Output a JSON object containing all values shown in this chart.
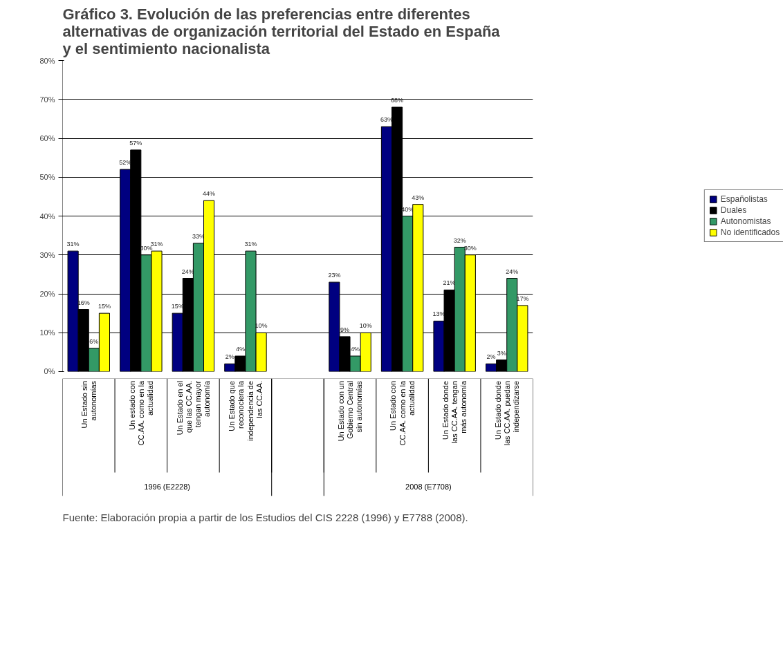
{
  "chart_data": {
    "type": "bar",
    "title": "Gráfico 3. Evolución de las preferencias entre diferentes alternativas de organización territorial del Estado en España y el sentimiento nacionalista",
    "categories": [
      "Un Estado sin autonomías",
      "Un estado con CC.AA. como en la actualidad",
      "Un Estado en el que las CC.AA. tengan mayor autonomía",
      "Un Estado que reconociera la independencia de las CC.AA.",
      null,
      "Un Estado con un Gobierno Central sin autonomías",
      "Un Estado con CC.AA. como en la actualidad",
      "Un Estado donde las CC.AA. tengan más autonomía",
      "Un Estado donde las CC.AA. puedan independizarse"
    ],
    "series": [
      {
        "name": "Españolistas",
        "color": "#000080",
        "values": [
          31,
          52,
          15,
          2,
          null,
          23,
          63,
          13,
          2
        ],
        "value_labels": [
          "31%",
          "52%",
          "15%",
          "2%",
          null,
          "23%",
          "63%",
          "13%",
          "2%"
        ]
      },
      {
        "name": "Duales",
        "color": "#000000",
        "values": [
          16,
          57,
          24,
          4,
          null,
          9,
          68,
          21,
          3
        ],
        "value_labels": [
          "16%",
          "57%",
          "24%",
          "4%",
          null,
          "9%",
          "68%",
          "21%",
          "3%"
        ]
      },
      {
        "name": "Autonomistas",
        "color": "#339966",
        "values": [
          6,
          30,
          33,
          31,
          null,
          4,
          40,
          32,
          24
        ],
        "value_labels": [
          "6%",
          "30%",
          "33%",
          "31%",
          null,
          "4%",
          "40%",
          "32%",
          "24%"
        ]
      },
      {
        "name": "No identificados",
        "color": "#ffff00",
        "values": [
          15,
          31,
          44,
          10,
          null,
          10,
          43,
          30,
          17
        ],
        "value_labels": [
          "15%",
          "31%",
          "44%",
          "10%",
          null,
          "10%",
          "43%",
          "30%",
          "17%"
        ]
      }
    ],
    "ylim": [
      0,
      80
    ],
    "yticks": [
      {
        "value": 0,
        "label": "0%"
      },
      {
        "value": 10,
        "label": "10%"
      },
      {
        "value": 20,
        "label": "20%"
      },
      {
        "value": 30,
        "label": "30%"
      },
      {
        "value": 40,
        "label": "40%"
      },
      {
        "value": 50,
        "label": "50%"
      },
      {
        "value": 60,
        "label": "60%"
      },
      {
        "value": 70,
        "label": "70%"
      },
      {
        "value": 80,
        "label": "80%"
      }
    ],
    "grid": "y",
    "legend": "right",
    "annotations": [
      "1996 (E2228)",
      "2008 (E7708)",
      "Fuente: Elaboración propia a partir de los Estudios del CIS 2228 (1996) y E7788 (2008)."
    ]
  }
}
